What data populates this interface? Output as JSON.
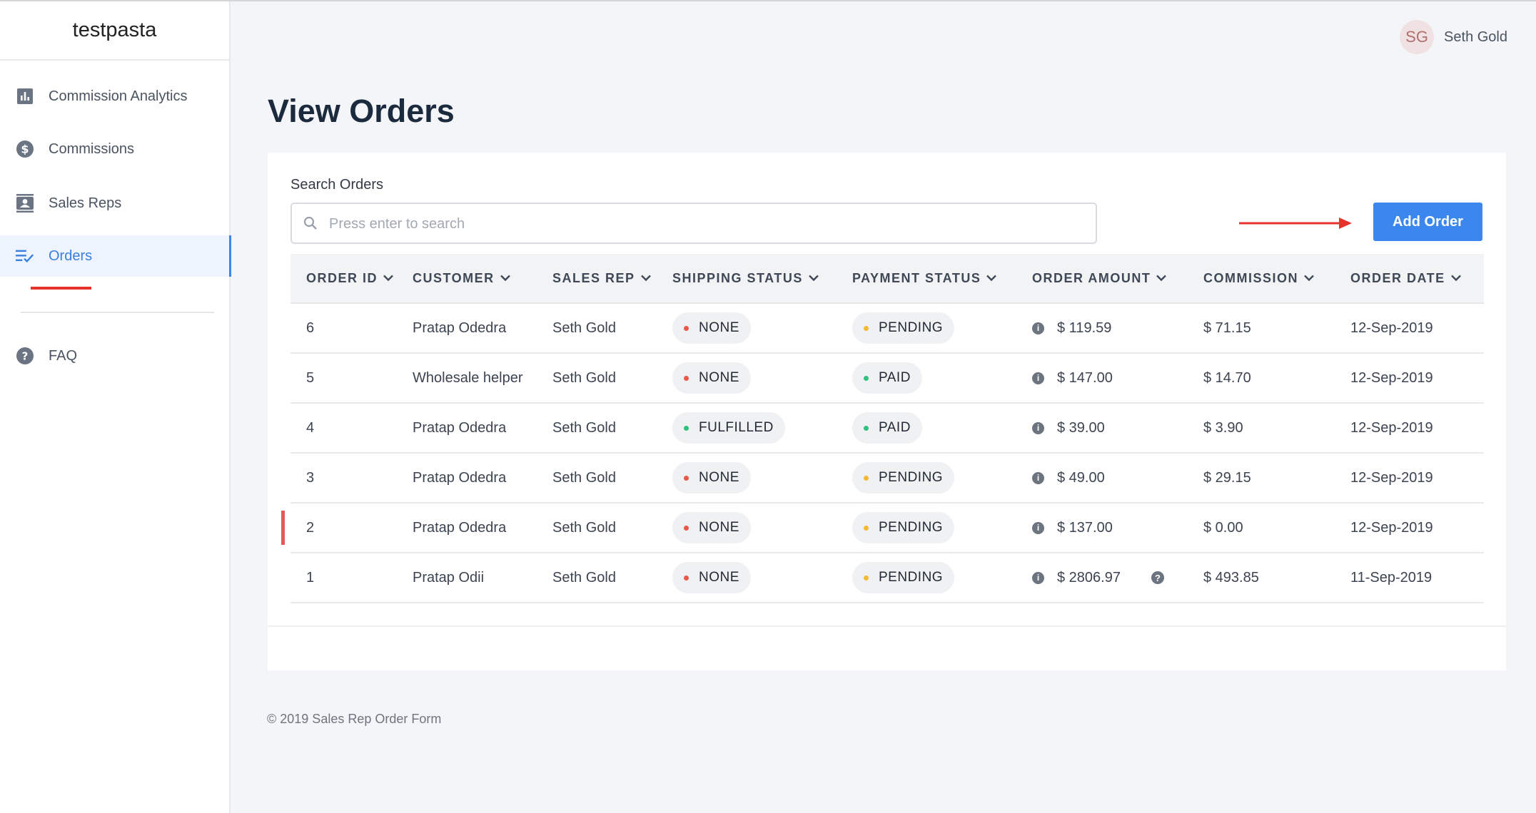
{
  "brand": "testpasta",
  "sidebar": {
    "items": [
      {
        "label": "Commission Analytics",
        "icon": "bar-chart-icon"
      },
      {
        "label": "Commissions",
        "icon": "dollar-circle-icon"
      },
      {
        "label": "Sales Reps",
        "icon": "contact-card-icon"
      },
      {
        "label": "Orders",
        "icon": "list-check-icon"
      },
      {
        "label": "FAQ",
        "icon": "help-circle-icon"
      }
    ],
    "active": "Orders"
  },
  "user": {
    "initials": "SG",
    "name": "Seth Gold"
  },
  "page": {
    "title": "View Orders"
  },
  "search": {
    "label": "Search Orders",
    "placeholder": "Press enter to search",
    "value": ""
  },
  "actions": {
    "add_order": "Add Order"
  },
  "table": {
    "headers": [
      "ORDER ID",
      "CUSTOMER",
      "SALES REP",
      "SHIPPING STATUS",
      "PAYMENT STATUS",
      "ORDER AMOUNT",
      "COMMISSION",
      "ORDER DATE"
    ],
    "rows": [
      {
        "id": "6",
        "customer": "Pratap Odedra",
        "sales_rep": "Seth Gold",
        "shipping": "NONE",
        "payment": "PENDING",
        "amount": "$ 119.59",
        "commission": "$ 71.15",
        "date": "12-Sep-2019"
      },
      {
        "id": "5",
        "customer": "Wholesale helper",
        "sales_rep": "Seth Gold",
        "shipping": "NONE",
        "payment": "PAID",
        "amount": "$ 147.00",
        "commission": "$ 14.70",
        "date": "12-Sep-2019"
      },
      {
        "id": "4",
        "customer": "Pratap Odedra",
        "sales_rep": "Seth Gold",
        "shipping": "FULFILLED",
        "payment": "PAID",
        "amount": "$ 39.00",
        "commission": "$ 3.90",
        "date": "12-Sep-2019"
      },
      {
        "id": "3",
        "customer": "Pratap Odedra",
        "sales_rep": "Seth Gold",
        "shipping": "NONE",
        "payment": "PENDING",
        "amount": "$ 49.00",
        "commission": "$ 29.15",
        "date": "12-Sep-2019"
      },
      {
        "id": "2",
        "customer": "Pratap Odedra",
        "sales_rep": "Seth Gold",
        "shipping": "NONE",
        "payment": "PENDING",
        "amount": "$ 137.00",
        "commission": "$ 0.00",
        "date": "12-Sep-2019"
      },
      {
        "id": "1",
        "customer": "Pratap Odii",
        "sales_rep": "Seth Gold",
        "shipping": "NONE",
        "payment": "PENDING",
        "amount": "$ 2806.97",
        "commission": "$ 493.85",
        "date": "11-Sep-2019"
      }
    ]
  },
  "status_colors": {
    "NONE": "#e8574a",
    "FULFILLED": "#2ec27e",
    "PAID": "#2ec27e",
    "PENDING": "#f5b82e"
  },
  "colors": {
    "accent": "#3b87ee",
    "sidebar_active_bg": "#eef4fd",
    "title": "#1b2a3d"
  },
  "footer": "© 2019 Sales Rep Order Form"
}
